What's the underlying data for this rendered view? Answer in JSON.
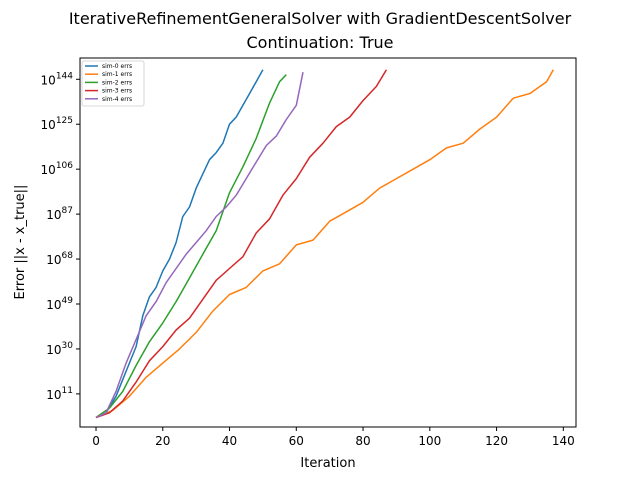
{
  "chart_data": {
    "type": "line",
    "title": "IterativeRefinementGeneralSolver with GradientDescentSolver",
    "subtitle": "Continuation: True",
    "xlabel": "Iteration",
    "ylabel": "Error ||x - x_true||",
    "xlim": [
      -4.8,
      143.8
    ],
    "ylim": [
      -3,
      153
    ],
    "y_scale": "log",
    "y_tick_base": "10",
    "grid": false,
    "legend_position": "top-left",
    "x_ticks": [
      {
        "value": 0,
        "label": "0"
      },
      {
        "value": 20,
        "label": "20"
      },
      {
        "value": 40,
        "label": "40"
      },
      {
        "value": 60,
        "label": "60"
      },
      {
        "value": 80,
        "label": "80"
      },
      {
        "value": 100,
        "label": "100"
      },
      {
        "value": 120,
        "label": "120"
      },
      {
        "value": 140,
        "label": "140"
      }
    ],
    "y_ticks": [
      {
        "value": 11,
        "exp": "11"
      },
      {
        "value": 30,
        "exp": "30"
      },
      {
        "value": 49,
        "exp": "49"
      },
      {
        "value": 68,
        "exp": "68"
      },
      {
        "value": 87,
        "exp": "87"
      },
      {
        "value": 106,
        "exp": "106"
      },
      {
        "value": 125,
        "exp": "125"
      },
      {
        "value": 144,
        "exp": "144"
      }
    ],
    "series": [
      {
        "name": "sim-0 errs",
        "color": "#1f77b4",
        "x": [
          0,
          3,
          6,
          8,
          10,
          12,
          14,
          16,
          18,
          20,
          22,
          24,
          26,
          28,
          30,
          32,
          34,
          36,
          38,
          40,
          42,
          44,
          46,
          48,
          50
        ],
        "y": [
          1,
          3,
          10,
          17,
          24,
          31,
          44,
          52,
          56,
          63,
          68,
          75,
          86,
          90,
          98,
          104,
          110,
          113,
          117,
          125,
          128,
          133,
          138,
          143,
          148
        ]
      },
      {
        "name": "sim-1 errs",
        "color": "#ff7f0e",
        "x": [
          0,
          5,
          10,
          15,
          20,
          25,
          30,
          35,
          40,
          45,
          50,
          55,
          60,
          65,
          70,
          75,
          80,
          85,
          90,
          95,
          100,
          105,
          110,
          115,
          120,
          125,
          130,
          135,
          137
        ],
        "y": [
          1,
          4,
          10,
          18,
          24,
          30,
          37,
          46,
          53,
          56,
          63,
          66,
          74,
          76,
          84,
          88,
          92,
          98,
          102,
          106,
          110,
          115,
          117,
          123,
          128,
          136,
          138,
          143,
          148
        ]
      },
      {
        "name": "sim-2 errs",
        "color": "#2ca02c",
        "x": [
          0,
          4,
          8,
          12,
          16,
          20,
          24,
          28,
          32,
          36,
          40,
          44,
          48,
          52,
          55,
          57
        ],
        "y": [
          1,
          5,
          12,
          23,
          33,
          41,
          50,
          60,
          70,
          80,
          96,
          107,
          119,
          134,
          143,
          146
        ]
      },
      {
        "name": "sim-3 errs",
        "color": "#d62728",
        "x": [
          0,
          4,
          8,
          12,
          16,
          20,
          24,
          28,
          32,
          36,
          40,
          44,
          48,
          52,
          56,
          60,
          64,
          68,
          72,
          76,
          80,
          84,
          87
        ],
        "y": [
          1,
          3,
          8,
          16,
          25,
          31,
          38,
          43,
          51,
          59,
          64,
          69,
          79,
          85,
          95,
          102,
          111,
          117,
          124,
          128,
          135,
          141,
          148
        ]
      },
      {
        "name": "sim-4 errs",
        "color": "#9467bd",
        "x": [
          0,
          3,
          6,
          9,
          12,
          15,
          18,
          21,
          24,
          27,
          30,
          33,
          36,
          39,
          42,
          45,
          48,
          51,
          54,
          57,
          60,
          62
        ],
        "y": [
          1,
          3,
          12,
          24,
          34,
          44,
          50,
          58,
          64,
          70,
          75,
          80,
          86,
          90,
          95,
          102,
          109,
          116,
          120,
          127,
          133,
          147
        ]
      }
    ]
  }
}
